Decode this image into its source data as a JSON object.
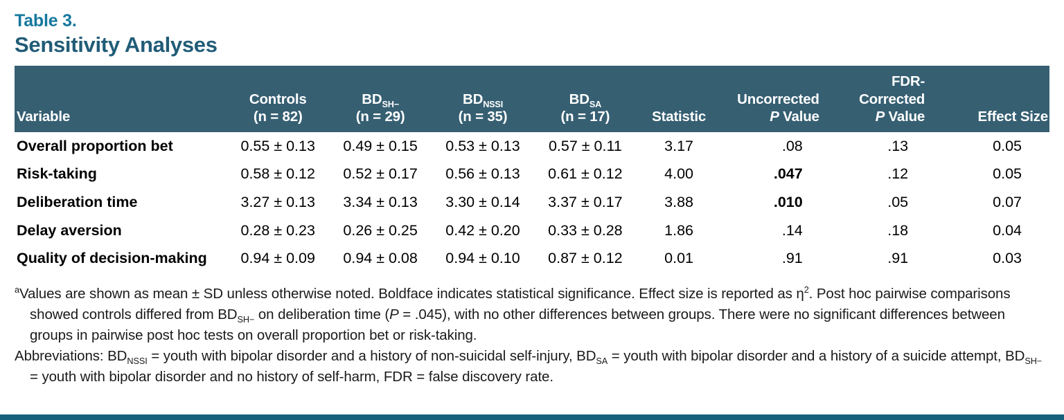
{
  "header": {
    "table_label": "Table 3.",
    "title": "Sensitivity Analyses"
  },
  "accent_colors": {
    "label_teal": "#15789e",
    "title_teal": "#215c77",
    "header_bg": "#365f72",
    "bottom_bar": "#16607b"
  },
  "table": {
    "columns": [
      {
        "label": "Variable"
      },
      {
        "line1": "Controls",
        "line2": "(n = 82)"
      },
      {
        "line1_segments": [
          {
            "text": "BD"
          },
          {
            "sub": "SH−"
          }
        ],
        "line2": "(n = 29)"
      },
      {
        "line1_segments": [
          {
            "text": "BD"
          },
          {
            "sub": "NSSI"
          }
        ],
        "line2": "(n = 35)"
      },
      {
        "line1_segments": [
          {
            "text": "BD"
          },
          {
            "sub": "SA"
          }
        ],
        "line2": "(n = 17)"
      },
      {
        "label": "Statistic"
      },
      {
        "line1": "Uncorrected",
        "line2_segments": [
          {
            "italic": "P"
          },
          {
            "text": " Value"
          }
        ]
      },
      {
        "line1": "FDR-Corrected",
        "line2_segments": [
          {
            "italic": "P"
          },
          {
            "text": " Value"
          }
        ]
      },
      {
        "label": "Effect Size"
      }
    ],
    "rows": [
      {
        "variable": "Overall proportion bet",
        "controls": "0.55 ± 0.13",
        "bd_sh": "0.49 ± 0.15",
        "bd_nssi": "0.53 ± 0.13",
        "bd_sa": "0.57 ± 0.11",
        "statistic": "3.17",
        "p_uncorrected": ".08",
        "p_uncorrected_sig": false,
        "p_fdr": ".13",
        "effect_size": "0.05"
      },
      {
        "variable": "Risk-taking",
        "controls": "0.58 ± 0.12",
        "bd_sh": "0.52 ± 0.17",
        "bd_nssi": "0.56 ± 0.13",
        "bd_sa": "0.61 ± 0.12",
        "statistic": "4.00",
        "p_uncorrected": ".047",
        "p_uncorrected_sig": true,
        "p_fdr": ".12",
        "effect_size": "0.05"
      },
      {
        "variable": "Deliberation time",
        "controls": "3.27 ± 0.13",
        "bd_sh": "3.34 ± 0.13",
        "bd_nssi": "3.30 ± 0.14",
        "bd_sa": "3.37 ± 0.17",
        "statistic": "3.88",
        "p_uncorrected": ".010",
        "p_uncorrected_sig": true,
        "p_fdr": ".05",
        "effect_size": "0.07"
      },
      {
        "variable": "Delay aversion",
        "controls": "0.28 ± 0.23",
        "bd_sh": "0.26 ± 0.25",
        "bd_nssi": "0.42 ± 0.20",
        "bd_sa": "0.33 ± 0.28",
        "statistic": "1.86",
        "p_uncorrected": ".14",
        "p_uncorrected_sig": false,
        "p_fdr": ".18",
        "effect_size": "0.04"
      },
      {
        "variable": "Quality of decision-making",
        "controls": "0.94 ± 0.09",
        "bd_sh": "0.94 ± 0.08",
        "bd_nssi": "0.94 ± 0.10",
        "bd_sa": "0.87 ± 0.12",
        "statistic": "0.01",
        "p_uncorrected": ".91",
        "p_uncorrected_sig": false,
        "p_fdr": ".91",
        "effect_size": "0.03"
      }
    ]
  },
  "footnotes": [
    {
      "segments": [
        {
          "sup": "a"
        },
        {
          "text": "Values are shown as mean ± SD unless otherwise noted. Boldface indicates statistical significance. Effect size is reported as η"
        },
        {
          "sup": "2"
        },
        {
          "text": ". Post hoc pairwise comparisons showed controls differed from BD"
        },
        {
          "sub": "SH−"
        },
        {
          "text": " on deliberation time ("
        },
        {
          "italic": "P"
        },
        {
          "text": " = .045), with no other differences between groups. There were no significant differences between groups in pairwise post hoc tests on overall proportion bet or risk-taking."
        }
      ]
    },
    {
      "segments": [
        {
          "text": "Abbreviations: BD"
        },
        {
          "sub": "NSSI"
        },
        {
          "text": " = youth with bipolar disorder and a history of non-suicidal self-injury, BD"
        },
        {
          "sub": "SA"
        },
        {
          "text": " = youth with bipolar disorder and a history of a suicide attempt, BD"
        },
        {
          "sub": "SH−"
        },
        {
          "text": " = youth with bipolar disorder and no history of self-harm, FDR = false discovery rate."
        }
      ]
    }
  ]
}
